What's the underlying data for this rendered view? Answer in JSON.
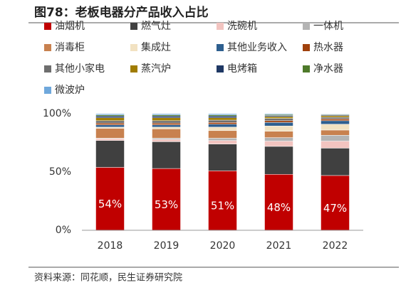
{
  "chart_data": {
    "type": "stacked_bar",
    "title": "图78：老板电器分产品收入占比",
    "source": "资料来源：同花顺，民生证券研究院",
    "categories": [
      "2018",
      "2019",
      "2020",
      "2021",
      "2022"
    ],
    "ylim": [
      0,
      100
    ],
    "yticks": [
      {
        "value": 0,
        "label": "0%"
      },
      {
        "value": 50,
        "label": "50%"
      },
      {
        "value": 100,
        "label": "100%"
      }
    ],
    "grid": false,
    "series": [
      {
        "name": "油烟机",
        "color": "#c00000",
        "values": [
          54,
          53,
          51,
          48,
          47
        ],
        "value_labels": [
          "54%",
          "53%",
          "51%",
          "48%",
          "47%"
        ]
      },
      {
        "name": "燃气灶",
        "color": "#404040",
        "values": [
          23,
          23,
          23,
          24,
          23.5
        ]
      },
      {
        "name": "洗碗机",
        "color": "#f2c4c0",
        "values": [
          1.5,
          2,
          3,
          4.5,
          6
        ]
      },
      {
        "name": "一体机",
        "color": "#b4b4b4",
        "values": [
          0.5,
          1,
          2,
          3,
          5
        ]
      },
      {
        "name": "消毒柜",
        "color": "#c8814f",
        "values": [
          8.5,
          8,
          6.5,
          5.5,
          4.5
        ]
      },
      {
        "name": "集成灶",
        "color": "#f2e2c2",
        "values": [
          1,
          1.5,
          3,
          4.5,
          5
        ]
      },
      {
        "name": "其他业务收入",
        "color": "#2e5f8f",
        "values": [
          2,
          2,
          2.5,
          3,
          3
        ]
      },
      {
        "name": "热水器",
        "color": "#a0410d",
        "values": [
          1.5,
          1.5,
          1.5,
          1.5,
          1.5
        ]
      },
      {
        "name": "其他小家电",
        "color": "#6e6e6e",
        "values": [
          2,
          2,
          2,
          2,
          1.5
        ]
      },
      {
        "name": "蒸汽炉",
        "color": "#a07c00",
        "values": [
          2.5,
          2.5,
          2,
          1.5,
          1.3
        ]
      },
      {
        "name": "电烤箱",
        "color": "#1f3864",
        "values": [
          1.5,
          1.5,
          1.5,
          1,
          0.8
        ]
      },
      {
        "name": "净水器",
        "color": "#4e7a2a",
        "values": [
          1,
          1,
          1,
          0.8,
          0.5
        ]
      },
      {
        "name": "微波炉",
        "color": "#6fa8dc",
        "values": [
          1,
          1,
          1,
          0.7,
          0.4
        ]
      }
    ]
  }
}
